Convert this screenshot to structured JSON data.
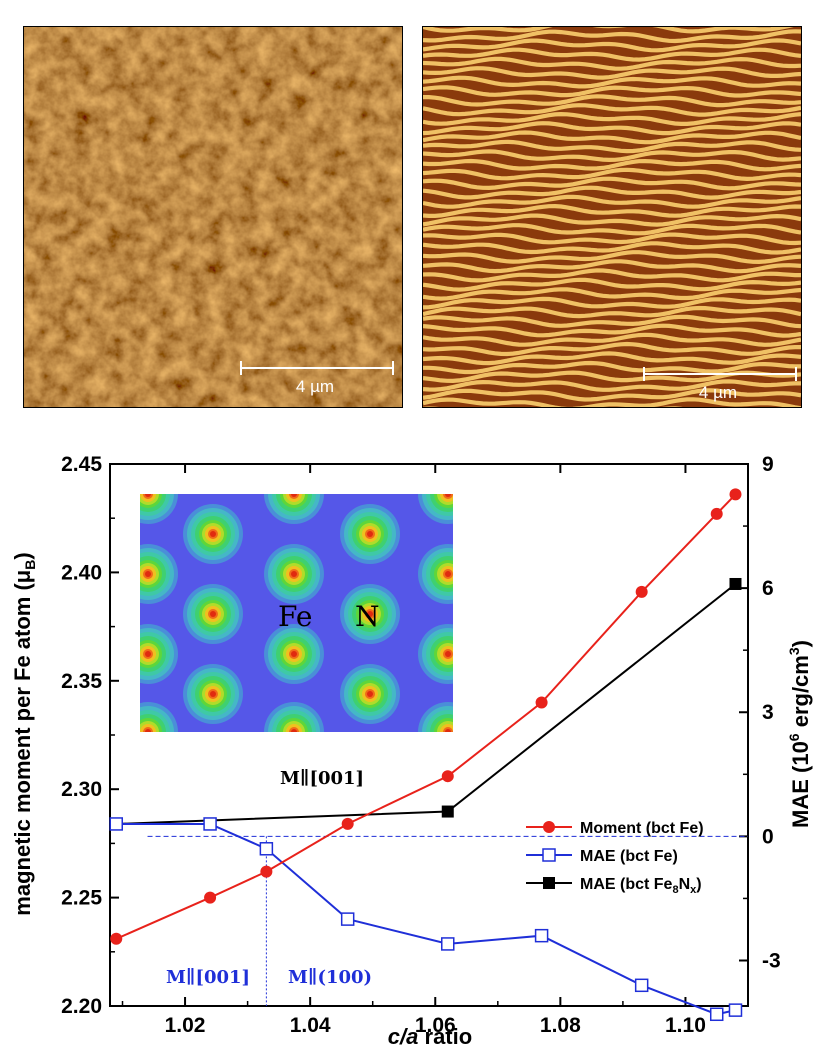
{
  "afm_panels": [
    {
      "scale_label": "4 µm",
      "texture": "granular"
    },
    {
      "scale_label": "4 µm",
      "texture": "stripe"
    }
  ],
  "inset": {
    "labels": [
      "Fe",
      "N"
    ],
    "background_color": "#5557e8"
  },
  "chart_data": {
    "type": "line",
    "xlabel_italic": "c/a",
    "xlabel_rest": " ratio",
    "ylabel_left": "magnetic moment per Fe atom (μ",
    "ylabel_left_sub": "B",
    "ylabel_left_close": ")",
    "ylabel_right": "MAE (10",
    "ylabel_right_sup": "6",
    "ylabel_right_rest": " erg/cm",
    "ylabel_right_sup2": "3",
    "ylabel_right_close": ")",
    "xlim": [
      1.008,
      1.11
    ],
    "ylim_left": [
      2.2,
      2.45
    ],
    "ylim_right": [
      -4.1,
      9.0
    ],
    "x_ticks": [
      "1.02",
      "1.04",
      "1.06",
      "1.08",
      "1.10"
    ],
    "y_left_ticks": [
      "2.20",
      "2.25",
      "2.30",
      "2.35",
      "2.40",
      "2.45"
    ],
    "y_right_ticks": [
      "-3",
      "0",
      "3",
      "6",
      "9"
    ],
    "series": [
      {
        "name": "Moment (bct Fe)",
        "axis": "left",
        "color": "#e8221b",
        "marker": "filled-circle",
        "x": [
          1.009,
          1.024,
          1.033,
          1.046,
          1.062,
          1.077,
          1.093,
          1.105,
          1.108
        ],
        "y": [
          2.231,
          2.25,
          2.262,
          2.284,
          2.306,
          2.34,
          2.391,
          2.427,
          2.436
        ]
      },
      {
        "name": "MAE (bct Fe)",
        "axis": "right",
        "color": "#1f2fd8",
        "marker": "open-square",
        "x": [
          1.009,
          1.024,
          1.033,
          1.046,
          1.062,
          1.077,
          1.093,
          1.105,
          1.108
        ],
        "y": [
          0.3,
          0.3,
          -0.3,
          -2.0,
          -2.6,
          -2.4,
          -3.6,
          -4.3,
          -4.2
        ]
      },
      {
        "name": "MAE (bct Fe8Nx)",
        "name_base": "MAE (bct Fe",
        "name_sub1": "8",
        "name_mid": "N",
        "name_sub2": "x",
        "name_close": ")",
        "axis": "right",
        "color": "#000000",
        "marker": "filled-square",
        "x": [
          1.009,
          1.062,
          1.108
        ],
        "y": [
          0.3,
          0.6,
          6.1
        ]
      }
    ],
    "annotations": {
      "black_label": "M∥[001]",
      "blue_left": "M∥[001]",
      "blue_right": "M∥(100)",
      "divider_x": 1.033,
      "zero_line": 0
    },
    "legend_position": "middle-right"
  }
}
